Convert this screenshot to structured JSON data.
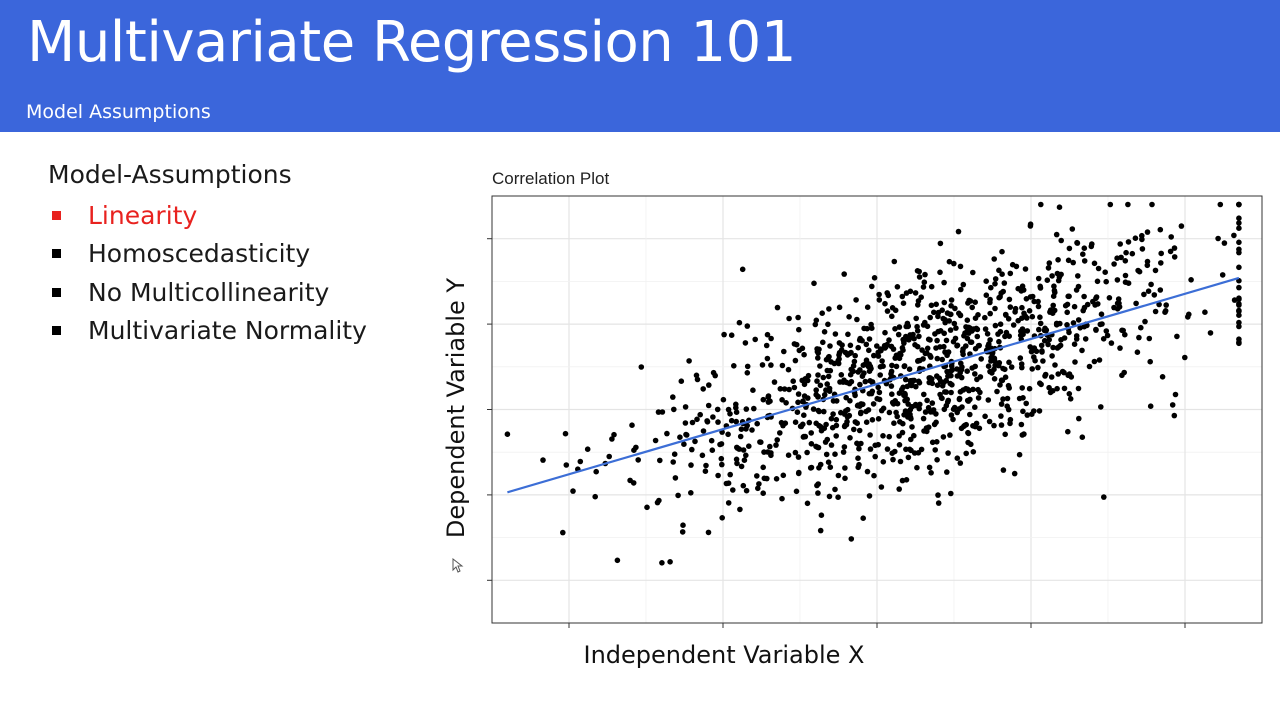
{
  "slide": {
    "title": "Multivariate Regression 101",
    "subtitle": "Model Assumptions",
    "header_color": "#3b66db",
    "bullets_heading": "Model-Assumptions",
    "bullets": [
      {
        "label": "Linearity",
        "active": true
      },
      {
        "label": "Homoscedasticity",
        "active": false
      },
      {
        "label": "No Multicollinearity",
        "active": false
      },
      {
        "label": "Multivariate Normality",
        "active": false
      }
    ],
    "active_color": "#e8221f"
  },
  "chart_data": {
    "type": "scatter",
    "title": "Correlation Plot",
    "xlabel": "Independent Variable X",
    "ylabel": "Dependent Variable Y",
    "xlim": [
      0,
      10
    ],
    "ylim": [
      0,
      10
    ],
    "x_tick_labels": [],
    "y_tick_labels": [],
    "grid": true,
    "point_color": "#000000",
    "series": [
      {
        "type": "points",
        "n_points": 1200,
        "trend": {
          "slope": 0.53,
          "intercept": 2.95
        },
        "x_distribution": {
          "mean": 5.6,
          "sd": 1.75,
          "min": 0.2,
          "max": 9.7
        },
        "residual_sd": 1.15
      },
      {
        "type": "regression_line",
        "color": "#3c6ed6",
        "x": [
          0.2,
          9.7
        ],
        "y": [
          3.06,
          8.08
        ]
      }
    ]
  }
}
